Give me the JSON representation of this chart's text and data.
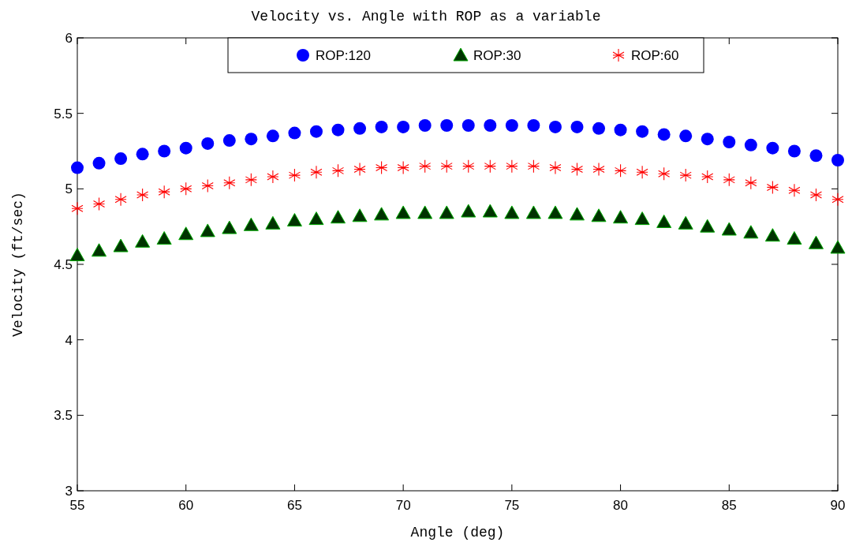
{
  "chart_data": {
    "type": "scatter",
    "title": "Velocity vs. Angle with ROP as a variable",
    "xlabel": "Angle (deg)",
    "ylabel": "Velocity (ft/sec)",
    "x": [
      55,
      56,
      57,
      58,
      59,
      60,
      61,
      62,
      63,
      64,
      65,
      66,
      67,
      68,
      69,
      70,
      71,
      72,
      73,
      74,
      75,
      76,
      77,
      78,
      79,
      80,
      81,
      82,
      83,
      84,
      85,
      86,
      87,
      88,
      89,
      90
    ],
    "series": [
      {
        "name": "ROP:120",
        "color": "#0000ff",
        "marker": "circle",
        "values": [
          5.14,
          5.17,
          5.2,
          5.23,
          5.25,
          5.27,
          5.3,
          5.32,
          5.33,
          5.35,
          5.37,
          5.38,
          5.39,
          5.4,
          5.41,
          5.41,
          5.42,
          5.42,
          5.42,
          5.42,
          5.42,
          5.42,
          5.41,
          5.41,
          5.4,
          5.39,
          5.38,
          5.36,
          5.35,
          5.33,
          5.31,
          5.29,
          5.27,
          5.25,
          5.22,
          5.19
        ]
      },
      {
        "name": "ROP:30",
        "color": "#003300",
        "marker": "triangle",
        "values": [
          4.56,
          4.59,
          4.62,
          4.65,
          4.67,
          4.7,
          4.72,
          4.74,
          4.76,
          4.77,
          4.79,
          4.8,
          4.81,
          4.82,
          4.83,
          4.84,
          4.84,
          4.84,
          4.85,
          4.85,
          4.84,
          4.84,
          4.84,
          4.83,
          4.82,
          4.81,
          4.8,
          4.78,
          4.77,
          4.75,
          4.73,
          4.71,
          4.69,
          4.67,
          4.64,
          4.61
        ]
      },
      {
        "name": "ROP:60",
        "color": "#ff0000",
        "marker": "cross",
        "values": [
          4.87,
          4.9,
          4.93,
          4.96,
          4.98,
          5.0,
          5.02,
          5.04,
          5.06,
          5.08,
          5.09,
          5.11,
          5.12,
          5.13,
          5.14,
          5.14,
          5.15,
          5.15,
          5.15,
          5.15,
          5.15,
          5.15,
          5.14,
          5.13,
          5.13,
          5.12,
          5.11,
          5.1,
          5.09,
          5.08,
          5.06,
          5.04,
          5.01,
          4.99,
          4.96,
          4.93
        ]
      }
    ],
    "xlim": [
      55,
      90
    ],
    "xticks": [
      55,
      60,
      65,
      70,
      75,
      80,
      85,
      90
    ],
    "ylim": [
      3,
      6
    ],
    "yticks": [
      3,
      3.5,
      4,
      4.5,
      5,
      5.5,
      6
    ],
    "legend": "top",
    "grid": false
  }
}
